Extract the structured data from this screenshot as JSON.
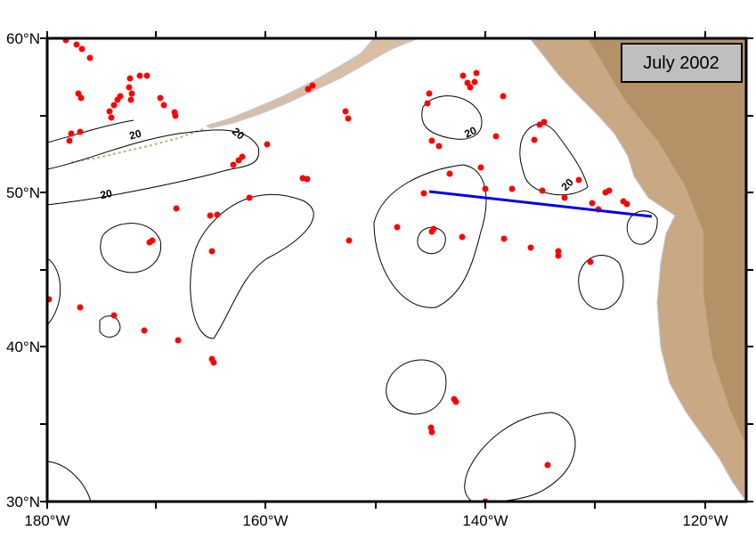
{
  "map": {
    "title": "July 2002",
    "x_labels": [
      "180°W",
      "160°W",
      "140°W",
      "120°W"
    ],
    "y_labels": [
      "60°N",
      "50°N",
      "40°N",
      "30°N"
    ],
    "contour_labels": [
      "20",
      "20",
      "20",
      "20",
      "20"
    ]
  }
}
